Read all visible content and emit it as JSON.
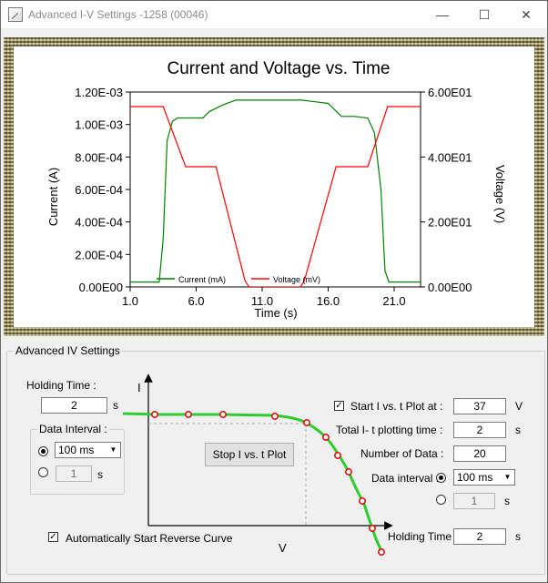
{
  "window": {
    "title": "Advanced I-V Settings -1258 (00046)"
  },
  "titlebar_buttons": {
    "minimize": "—",
    "maximize": "☐",
    "close": "✕"
  },
  "chart_data": {
    "type": "line",
    "title": "Current and  Voltage vs. Time",
    "xlabel": "Time (s)",
    "ylabel": "Current (A)",
    "y2label": "Voltage (V)",
    "xlim": [
      1.0,
      23.0
    ],
    "ylim": [
      0,
      0.0012
    ],
    "y2lim": [
      0,
      60
    ],
    "x_ticks": [
      "1.0",
      "6.0",
      "11.0",
      "16.0",
      "21.0"
    ],
    "y_ticks": [
      "0.00E00",
      "2.00E-04",
      "4.00E-04",
      "6.00E-04",
      "8.00E-04",
      "1.00E-03",
      "1.20E-03"
    ],
    "y2_ticks": [
      "0.00E00",
      "2.00E01",
      "4.00E01",
      "6.00E01"
    ],
    "grid": false,
    "legend_position": "bottom-left",
    "colors": {
      "current": "#008000",
      "voltage": "#ff0000"
    },
    "series": [
      {
        "name": "Current (mA)",
        "axis": "left",
        "x": [
          1.0,
          3.2,
          3.5,
          3.8,
          4.2,
          4.6,
          5.2,
          6.5,
          7.0,
          8.0,
          9.0,
          10.0,
          12.0,
          14.0,
          15.0,
          16.0,
          17.0,
          18.0,
          19.0,
          19.5,
          20.0,
          20.3,
          20.6,
          21.0,
          23.0
        ],
        "y": [
          3e-05,
          3e-05,
          0.0003,
          0.0009,
          0.00102,
          0.00104,
          0.00104,
          0.00104,
          0.00108,
          0.00112,
          0.00115,
          0.00115,
          0.00115,
          0.00115,
          0.00114,
          0.00113,
          0.00105,
          0.00105,
          0.00104,
          0.00095,
          0.0006,
          0.0001,
          3e-05,
          3e-05,
          3e-05
        ]
      },
      {
        "name": "Voltage (mV)",
        "axis": "right",
        "x": [
          1.0,
          3.5,
          5.2,
          7.5,
          9.7,
          10.0,
          13.9,
          14.2,
          16.6,
          19.0,
          20.5,
          23.0
        ],
        "y": [
          55.5,
          55.5,
          37,
          37,
          2,
          0,
          0,
          2,
          37,
          37,
          55.5,
          55.5
        ]
      }
    ]
  },
  "settings": {
    "group_label": "Advanced IV Settings",
    "holding_time_label": "Holding Time :",
    "holding_time_value": "2",
    "seconds_unit": "s",
    "data_interval_group": "Data Interval :",
    "interval_option": "100 ms",
    "interval_custom": "1",
    "diagram": {
      "y_axis": "I",
      "x_axis": "V",
      "stop_button": "Stop I vs. t Plot"
    },
    "start_plot_label": "Start I vs. t Plot at :",
    "start_plot_value": "37",
    "start_plot_unit": "V",
    "start_plot_checked": true,
    "total_time_label": "Total I- t plotting time :",
    "total_time_value": "2",
    "number_data_label": "Number of Data :",
    "number_data_value": "20",
    "data_interval_label": "Data interval :",
    "right_interval_option": "100 ms",
    "right_interval_custom": "1",
    "holding_time2_label": "Holding Time",
    "holding_time2_value": "2",
    "auto_reverse_label": "Automatically Start Reverse Curve",
    "auto_reverse_checked": true
  }
}
